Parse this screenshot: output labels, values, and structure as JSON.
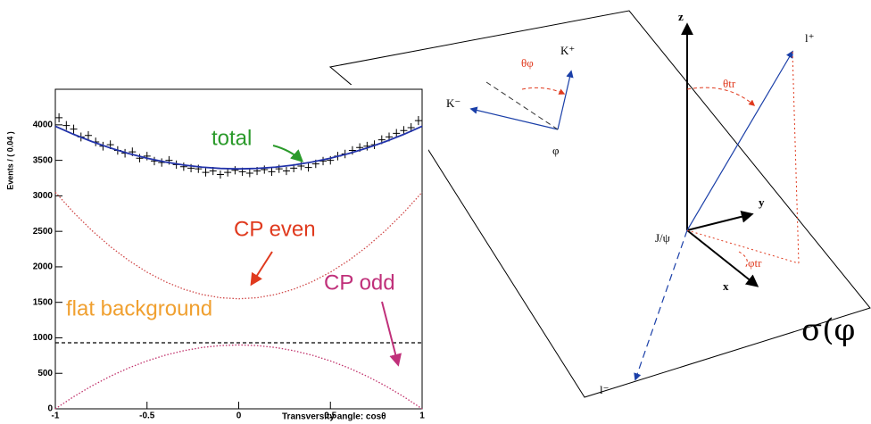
{
  "chart_data": {
    "type": "line",
    "ylabel": "Events / ( 0.04 )",
    "xlabel": "Transversity angle: cosθ",
    "xlim": [
      -1,
      1
    ],
    "ylim": [
      0,
      4300
    ],
    "xticks": [
      -1,
      -0.5,
      0,
      0.5,
      1
    ],
    "yticks": [
      0,
      500,
      1000,
      1500,
      2000,
      2500,
      3000,
      3500,
      4000
    ],
    "x": [
      -1,
      -0.9,
      -0.8,
      -0.7,
      -0.6,
      -0.5,
      -0.4,
      -0.3,
      -0.2,
      -0.1,
      0,
      0.1,
      0.2,
      0.3,
      0.4,
      0.5,
      0.6,
      0.7,
      0.8,
      0.9,
      1
    ],
    "series": [
      {
        "name": "total",
        "color": "#2233aa",
        "label_color": "#2a9a2a",
        "style": "solid",
        "values": [
          3980,
          3866,
          3764,
          3674,
          3596,
          3530,
          3476,
          3434,
          3404,
          3386,
          3380,
          3386,
          3404,
          3434,
          3476,
          3530,
          3596,
          3674,
          3764,
          3866,
          3980
        ]
      },
      {
        "name": "CP even",
        "color": "#d04848",
        "label_color": "#e03a1e",
        "style": "dotted",
        "values": [
          3050,
          2765,
          2510,
          2285,
          2090,
          1925,
          1790,
          1685,
          1610,
          1565,
          1550,
          1565,
          1610,
          1685,
          1790,
          1925,
          2090,
          2285,
          2510,
          2765,
          3050
        ]
      },
      {
        "name": "CP odd",
        "color": "#c0306a",
        "label_color": "#c0307a",
        "style": "dotted",
        "values": [
          0,
          171,
          324,
          459,
          576,
          675,
          756,
          819,
          864,
          891,
          900,
          891,
          864,
          819,
          756,
          675,
          576,
          459,
          324,
          171,
          0
        ]
      },
      {
        "name": "flat background",
        "color": "#000000",
        "label_color": "#f0a030",
        "style": "dashed",
        "values": [
          930,
          930,
          930,
          930,
          930,
          930,
          930,
          930,
          930,
          930,
          930,
          930,
          930,
          930,
          930,
          930,
          930,
          930,
          930,
          930,
          930
        ]
      }
    ],
    "points": {
      "color": "#000000",
      "x": [
        -0.98,
        -0.94,
        -0.9,
        -0.86,
        -0.82,
        -0.78,
        -0.74,
        -0.7,
        -0.66,
        -0.62,
        -0.58,
        -0.54,
        -0.5,
        -0.46,
        -0.42,
        -0.38,
        -0.34,
        -0.3,
        -0.26,
        -0.22,
        -0.18,
        -0.14,
        -0.1,
        -0.06,
        -0.02,
        0.02,
        0.06,
        0.1,
        0.14,
        0.18,
        0.22,
        0.26,
        0.3,
        0.34,
        0.38,
        0.42,
        0.46,
        0.5,
        0.54,
        0.58,
        0.62,
        0.66,
        0.7,
        0.74,
        0.78,
        0.82,
        0.86,
        0.9,
        0.94,
        0.98
      ],
      "values": [
        4100,
        3990,
        3940,
        3830,
        3850,
        3760,
        3700,
        3720,
        3640,
        3600,
        3620,
        3530,
        3560,
        3490,
        3470,
        3500,
        3440,
        3410,
        3390,
        3380,
        3330,
        3350,
        3300,
        3330,
        3360,
        3340,
        3320,
        3350,
        3370,
        3340,
        3380,
        3350,
        3390,
        3420,
        3400,
        3450,
        3490,
        3500,
        3560,
        3590,
        3640,
        3680,
        3700,
        3720,
        3790,
        3830,
        3880,
        3920,
        3960,
        4060
      ],
      "errors": [
        64,
        63,
        63,
        62,
        62,
        61,
        61,
        61,
        60,
        60,
        60,
        59,
        60,
        59,
        59,
        59,
        59,
        58,
        58,
        58,
        58,
        58,
        57,
        58,
        58,
        58,
        58,
        58,
        58,
        58,
        58,
        58,
        58,
        58,
        58,
        59,
        59,
        59,
        60,
        60,
        60,
        61,
        61,
        61,
        62,
        62,
        62,
        63,
        63,
        64
      ]
    }
  },
  "diagram": {
    "labels": [
      "z",
      "y",
      "x",
      "J/ψ",
      "l⁺",
      "l⁻",
      "K⁺",
      "K⁻",
      "φ",
      "θφ",
      "θtr",
      "φtr"
    ],
    "side_text": "σ(φ"
  }
}
